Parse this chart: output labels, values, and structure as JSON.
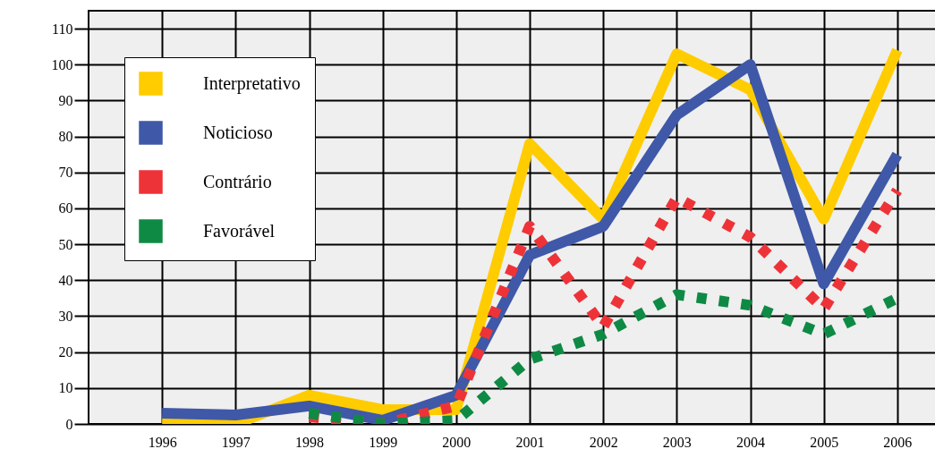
{
  "chart_data": {
    "type": "line",
    "x": [
      1996,
      1997,
      1998,
      1999,
      2000,
      2001,
      2002,
      2003,
      2004,
      2005,
      2006
    ],
    "xlim": [
      1995,
      2007
    ],
    "xticks": [
      1996,
      1997,
      1998,
      1999,
      2000,
      2001,
      2002,
      2003,
      2004,
      2005,
      2006
    ],
    "ylim": [
      0,
      115
    ],
    "yticks": [
      0,
      10,
      20,
      30,
      40,
      50,
      60,
      70,
      80,
      90,
      100,
      110
    ],
    "grid": true,
    "legend": "top left",
    "series": [
      {
        "name": "Interpretativo",
        "color": "#ffcc00",
        "line_style": "solid",
        "values": [
          0,
          0,
          8,
          4,
          4,
          78,
          57,
          103,
          93,
          57,
          104
        ]
      },
      {
        "name": "Noticioso",
        "color": "#3f58a8",
        "line_style": "solid",
        "values": [
          3,
          2.5,
          5,
          1,
          8,
          47,
          55,
          86,
          100,
          39,
          75
        ]
      },
      {
        "name": "Contrário",
        "color": "#ee3338",
        "line_style": "dotted",
        "values": [
          null,
          null,
          2,
          0,
          5,
          55,
          27,
          63,
          52,
          32,
          65
        ]
      },
      {
        "name": "Favorável",
        "color": "#0f8a45",
        "line_style": "dotted",
        "values": [
          null,
          null,
          3,
          0,
          1,
          18,
          25,
          36,
          33,
          25,
          35
        ]
      }
    ]
  }
}
